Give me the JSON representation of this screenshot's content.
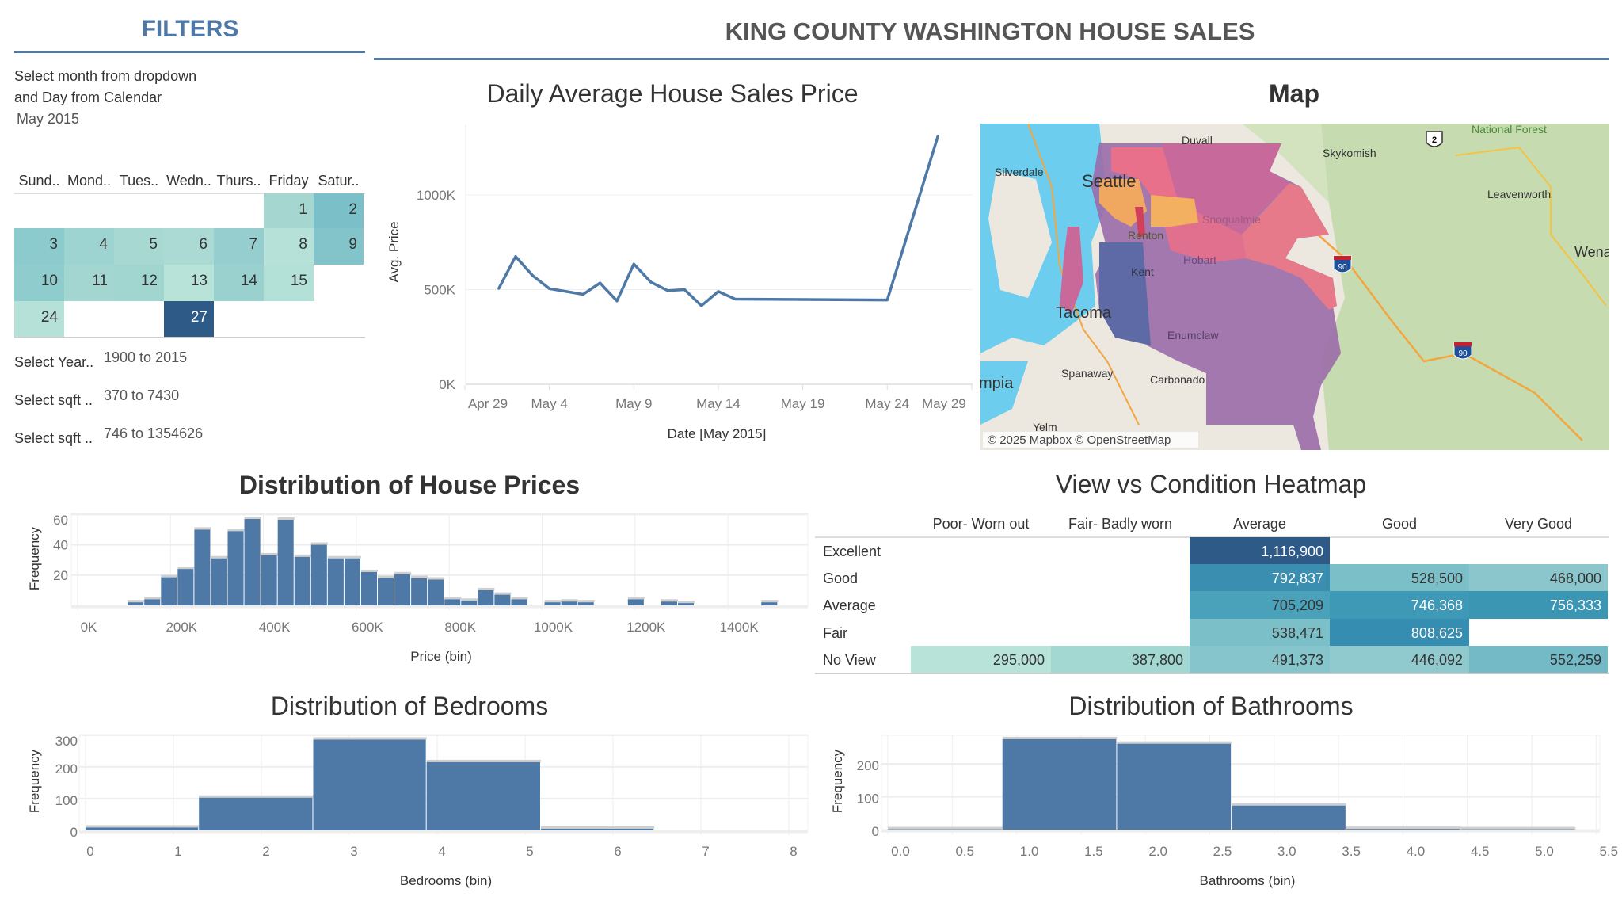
{
  "header": {
    "title": "KING COUNTY WASHINGTON HOUSE SALES",
    "accent_color": "#4e79a7"
  },
  "filters": {
    "title": "FILTERS",
    "instruction_line1": "Select month from dropdown",
    "instruction_line2": "and Day from Calendar",
    "month": "May 2015",
    "calendar": {
      "weekdays": [
        "Sund..",
        "Mond..",
        "Tues..",
        "Wedn..",
        "Thurs..",
        "Friday",
        "Satur.."
      ],
      "selected_day": "27",
      "days": [
        {
          "day": "1",
          "weekday": 5,
          "week": 0,
          "color": "#a5d6d0"
        },
        {
          "day": "2",
          "weekday": 6,
          "week": 0,
          "color": "#7bbfc8"
        },
        {
          "day": "3",
          "weekday": 0,
          "week": 1,
          "color": "#8ccbcd"
        },
        {
          "day": "4",
          "weekday": 1,
          "week": 1,
          "color": "#9dd3d0"
        },
        {
          "day": "5",
          "weekday": 2,
          "week": 1,
          "color": "#a7d8d2"
        },
        {
          "day": "6",
          "weekday": 3,
          "week": 1,
          "color": "#abd9d3"
        },
        {
          "day": "7",
          "weekday": 4,
          "week": 1,
          "color": "#96cecf"
        },
        {
          "day": "8",
          "weekday": 5,
          "week": 1,
          "color": "#b5e1d8"
        },
        {
          "day": "9",
          "weekday": 6,
          "week": 1,
          "color": "#82c4ca"
        },
        {
          "day": "10",
          "weekday": 0,
          "week": 2,
          "color": "#8fcccd"
        },
        {
          "day": "11",
          "weekday": 1,
          "week": 2,
          "color": "#a3d6d1"
        },
        {
          "day": "12",
          "weekday": 2,
          "week": 2,
          "color": "#a0d5d0"
        },
        {
          "day": "13",
          "weekday": 3,
          "week": 2,
          "color": "#b8e3d9"
        },
        {
          "day": "14",
          "weekday": 4,
          "week": 2,
          "color": "#9ad1cf"
        },
        {
          "day": "15",
          "weekday": 5,
          "week": 2,
          "color": "#b3e0d7"
        },
        {
          "day": "24",
          "weekday": 0,
          "week": 3,
          "color": "#b5e1d8"
        },
        {
          "day": "27",
          "weekday": 3,
          "week": 3,
          "color": "#2e5a87"
        }
      ]
    },
    "year": {
      "label": "Select Year..",
      "value": "1900 to 2015"
    },
    "sqft_living": {
      "label": "Select sqft ..",
      "value": "370 to 7430"
    },
    "sqft_lot": {
      "label": "Select sqft ..",
      "value": "746 to 1354626"
    }
  },
  "map": {
    "title": "Map",
    "attribution": "© 2025 Mapbox © OpenStreetMap",
    "labels": {
      "duvall": "Duvall",
      "silverdale": "Silverdale",
      "seattle": "Seattle",
      "skykomish": "Skykomish",
      "national_forest": "National Forest",
      "leavenworth": "Leavenworth",
      "wena": "Wena",
      "snoqualmie": "Snoqualmie",
      "renton": "Renton",
      "hobart": "Hobart",
      "kent": "Kent",
      "tacoma": "Tacoma",
      "enumclaw": "Enumclaw",
      "spanaway": "Spanaway",
      "carbonado": "Carbonado",
      "olympia": "mpia",
      "yelm": "Yelm"
    },
    "shields": {
      "us2": "2",
      "i90": "90"
    }
  },
  "chart_data": [
    {
      "id": "daily",
      "type": "line",
      "title": "Daily Average House Sales Price",
      "xlabel": "Date [May 2015]",
      "ylabel": "Avg. Price",
      "xlim": [
        "2015-04-29",
        "2015-05-29"
      ],
      "ylim": [
        0,
        1350000
      ],
      "yticks": [
        {
          "v": 0,
          "label": "0K"
        },
        {
          "v": 500000,
          "label": "500K"
        },
        {
          "v": 1000000,
          "label": "1000K"
        }
      ],
      "xticks": [
        {
          "d": "2015-04-29",
          "label": "Apr 29"
        },
        {
          "d": "2015-05-04",
          "label": "May 4"
        },
        {
          "d": "2015-05-09",
          "label": "May 9"
        },
        {
          "d": "2015-05-14",
          "label": "May 14"
        },
        {
          "d": "2015-05-19",
          "label": "May 19"
        },
        {
          "d": "2015-05-24",
          "label": "May 24"
        },
        {
          "d": "2015-05-29",
          "label": "May 29"
        }
      ],
      "color": "#4e79a7",
      "points": [
        {
          "date": "2015-05-01",
          "value": 505000
        },
        {
          "date": "2015-05-02",
          "value": 675000
        },
        {
          "date": "2015-05-03",
          "value": 575000
        },
        {
          "date": "2015-05-04",
          "value": 505000
        },
        {
          "date": "2015-05-05",
          "value": 490000
        },
        {
          "date": "2015-05-06",
          "value": 475000
        },
        {
          "date": "2015-05-07",
          "value": 535000
        },
        {
          "date": "2015-05-08",
          "value": 440000
        },
        {
          "date": "2015-05-09",
          "value": 635000
        },
        {
          "date": "2015-05-10",
          "value": 540000
        },
        {
          "date": "2015-05-11",
          "value": 495000
        },
        {
          "date": "2015-05-12",
          "value": 500000
        },
        {
          "date": "2015-05-13",
          "value": 415000
        },
        {
          "date": "2015-05-14",
          "value": 490000
        },
        {
          "date": "2015-05-15",
          "value": 450000
        },
        {
          "date": "2015-05-24",
          "value": 445000
        },
        {
          "date": "2015-05-27",
          "value": 1310000
        }
      ]
    },
    {
      "id": "price",
      "type": "bar",
      "title": "Distribution of House Prices",
      "xlabel": "Price (bin)",
      "ylabel": "Frequency",
      "units": "K",
      "xticks": [
        {
          "v": 0,
          "label": "0K"
        },
        {
          "v": 200,
          "label": "200K"
        },
        {
          "v": 400,
          "label": "400K"
        },
        {
          "v": 600,
          "label": "600K"
        },
        {
          "v": 800,
          "label": "800K"
        },
        {
          "v": 1000,
          "label": "1000K"
        },
        {
          "v": 1200,
          "label": "1200K"
        },
        {
          "v": 1400,
          "label": "1400K"
        }
      ],
      "yticks": [
        {
          "v": 20,
          "label": "20"
        },
        {
          "v": 40,
          "label": "40"
        },
        {
          "v": 60,
          "label": "60"
        }
      ],
      "bin_width": 35.9,
      "color": "#4e79a7",
      "bins": [
        {
          "start": 107.7,
          "count": 2
        },
        {
          "start": 143.6,
          "count": 4
        },
        {
          "start": 179.5,
          "count": 18.5
        },
        {
          "start": 215.4,
          "count": 24
        },
        {
          "start": 251.3,
          "count": 50
        },
        {
          "start": 287.2,
          "count": 31
        },
        {
          "start": 323.1,
          "count": 49
        },
        {
          "start": 359,
          "count": 57
        },
        {
          "start": 394.9,
          "count": 33
        },
        {
          "start": 430.8,
          "count": 56.5
        },
        {
          "start": 466.7,
          "count": 32
        },
        {
          "start": 502.6,
          "count": 40
        },
        {
          "start": 538.5,
          "count": 31
        },
        {
          "start": 574.4,
          "count": 31
        },
        {
          "start": 610.3,
          "count": 22
        },
        {
          "start": 646.2,
          "count": 18
        },
        {
          "start": 682.1,
          "count": 20.5
        },
        {
          "start": 718,
          "count": 18
        },
        {
          "start": 753.9,
          "count": 17
        },
        {
          "start": 789.8,
          "count": 4
        },
        {
          "start": 825.7,
          "count": 3
        },
        {
          "start": 861.6,
          "count": 10
        },
        {
          "start": 897.5,
          "count": 7
        },
        {
          "start": 933.4,
          "count": 4
        },
        {
          "start": 1005.2,
          "count": 2
        },
        {
          "start": 1041.1,
          "count": 2.5
        },
        {
          "start": 1077,
          "count": 2
        },
        {
          "start": 1184.7,
          "count": 4
        },
        {
          "start": 1256.5,
          "count": 2.5
        },
        {
          "start": 1292.4,
          "count": 1.5
        },
        {
          "start": 1471.9,
          "count": 2
        }
      ]
    },
    {
      "id": "bedrooms",
      "type": "bar",
      "title": "Distribution of Bedrooms",
      "xlabel": "Bedrooms (bin)",
      "ylabel": "Frequency",
      "xticks": [
        {
          "v": 0,
          "label": "0"
        },
        {
          "v": 1,
          "label": "1"
        },
        {
          "v": 2,
          "label": "2"
        },
        {
          "v": 3,
          "label": "3"
        },
        {
          "v": 4,
          "label": "4"
        },
        {
          "v": 5,
          "label": "5"
        },
        {
          "v": 6,
          "label": "6"
        },
        {
          "v": 7,
          "label": "7"
        },
        {
          "v": 8,
          "label": "8"
        }
      ],
      "yticks": [
        {
          "v": 0,
          "label": "0"
        },
        {
          "v": 100,
          "label": "100"
        },
        {
          "v": 200,
          "label": "200"
        },
        {
          "v": 300,
          "label": "300"
        }
      ],
      "color": "#4e79a7",
      "bins": [
        {
          "start": 0,
          "end": 1.29,
          "count": 9
        },
        {
          "start": 1.29,
          "end": 2.59,
          "count": 103
        },
        {
          "start": 2.59,
          "end": 3.88,
          "count": 286
        },
        {
          "start": 3.88,
          "end": 5.18,
          "count": 215
        },
        {
          "start": 5.18,
          "end": 6.47,
          "count": 5
        }
      ]
    },
    {
      "id": "bathrooms",
      "type": "bar",
      "title": "Distribution of Bathrooms",
      "xlabel": "Bathrooms (bin)",
      "ylabel": "Frequency",
      "xticks": [
        {
          "v": 0,
          "label": "0.0"
        },
        {
          "v": 0.5,
          "label": "0.5"
        },
        {
          "v": 1,
          "label": "1.0"
        },
        {
          "v": 1.5,
          "label": "1.5"
        },
        {
          "v": 2,
          "label": "2.0"
        },
        {
          "v": 2.5,
          "label": "2.5"
        },
        {
          "v": 3,
          "label": "3.0"
        },
        {
          "v": 3.5,
          "label": "3.5"
        },
        {
          "v": 4,
          "label": "4.0"
        },
        {
          "v": 4.5,
          "label": "4.5"
        },
        {
          "v": 5,
          "label": "5.0"
        },
        {
          "v": 5.5,
          "label": "5.5"
        }
      ],
      "yticks": [
        {
          "v": 0,
          "label": "0"
        },
        {
          "v": 100,
          "label": "100"
        },
        {
          "v": 200,
          "label": "200"
        }
      ],
      "color": "#4e79a7",
      "bins": [
        {
          "start": 0,
          "end": 0.89,
          "count": 1
        },
        {
          "start": 0.89,
          "end": 1.78,
          "count": 275
        },
        {
          "start": 1.78,
          "end": 2.67,
          "count": 261
        },
        {
          "start": 2.67,
          "end": 3.56,
          "count": 73
        },
        {
          "start": 3.56,
          "end": 4.45,
          "count": 2
        },
        {
          "start": 4.45,
          "end": 5.34,
          "count": 1
        }
      ]
    },
    {
      "id": "heatmap",
      "type": "heatmap",
      "title": "View vs Condition Heatmap",
      "columns": [
        "Poor- Worn out",
        "Fair- Badly worn",
        "Average",
        "Good",
        "Very Good"
      ],
      "rows": [
        {
          "label": "Excellent",
          "cells": [
            null,
            null,
            {
              "v": "1,116,900",
              "c": "#2e5a87"
            },
            null,
            null
          ]
        },
        {
          "label": "Good",
          "cells": [
            null,
            null,
            {
              "v": "792,837",
              "c": "#3a8fb0"
            },
            {
              "v": "528,500",
              "c": "#7bbfc8"
            },
            {
              "v": "468,000",
              "c": "#8ac6cc"
            }
          ]
        },
        {
          "label": "Average",
          "cells": [
            null,
            null,
            {
              "v": "705,209",
              "c": "#4aa2ba"
            },
            {
              "v": "746,368",
              "c": "#3e99b6"
            },
            {
              "v": "756,333",
              "c": "#3b96b4"
            }
          ]
        },
        {
          "label": "Fair",
          "cells": [
            null,
            null,
            {
              "v": "538,471",
              "c": "#7bbfc8"
            },
            {
              "v": "808,625",
              "c": "#358db1"
            },
            null
          ]
        },
        {
          "label": "No View",
          "cells": [
            {
              "v": "295,000",
              "c": "#b8e3d9"
            },
            {
              "v": "387,800",
              "c": "#a3d7d2"
            },
            {
              "v": "491,373",
              "c": "#85c5cb"
            },
            {
              "v": "446,092",
              "c": "#90cacf"
            },
            {
              "v": "552,259",
              "c": "#73b9c6"
            }
          ]
        }
      ]
    }
  ]
}
